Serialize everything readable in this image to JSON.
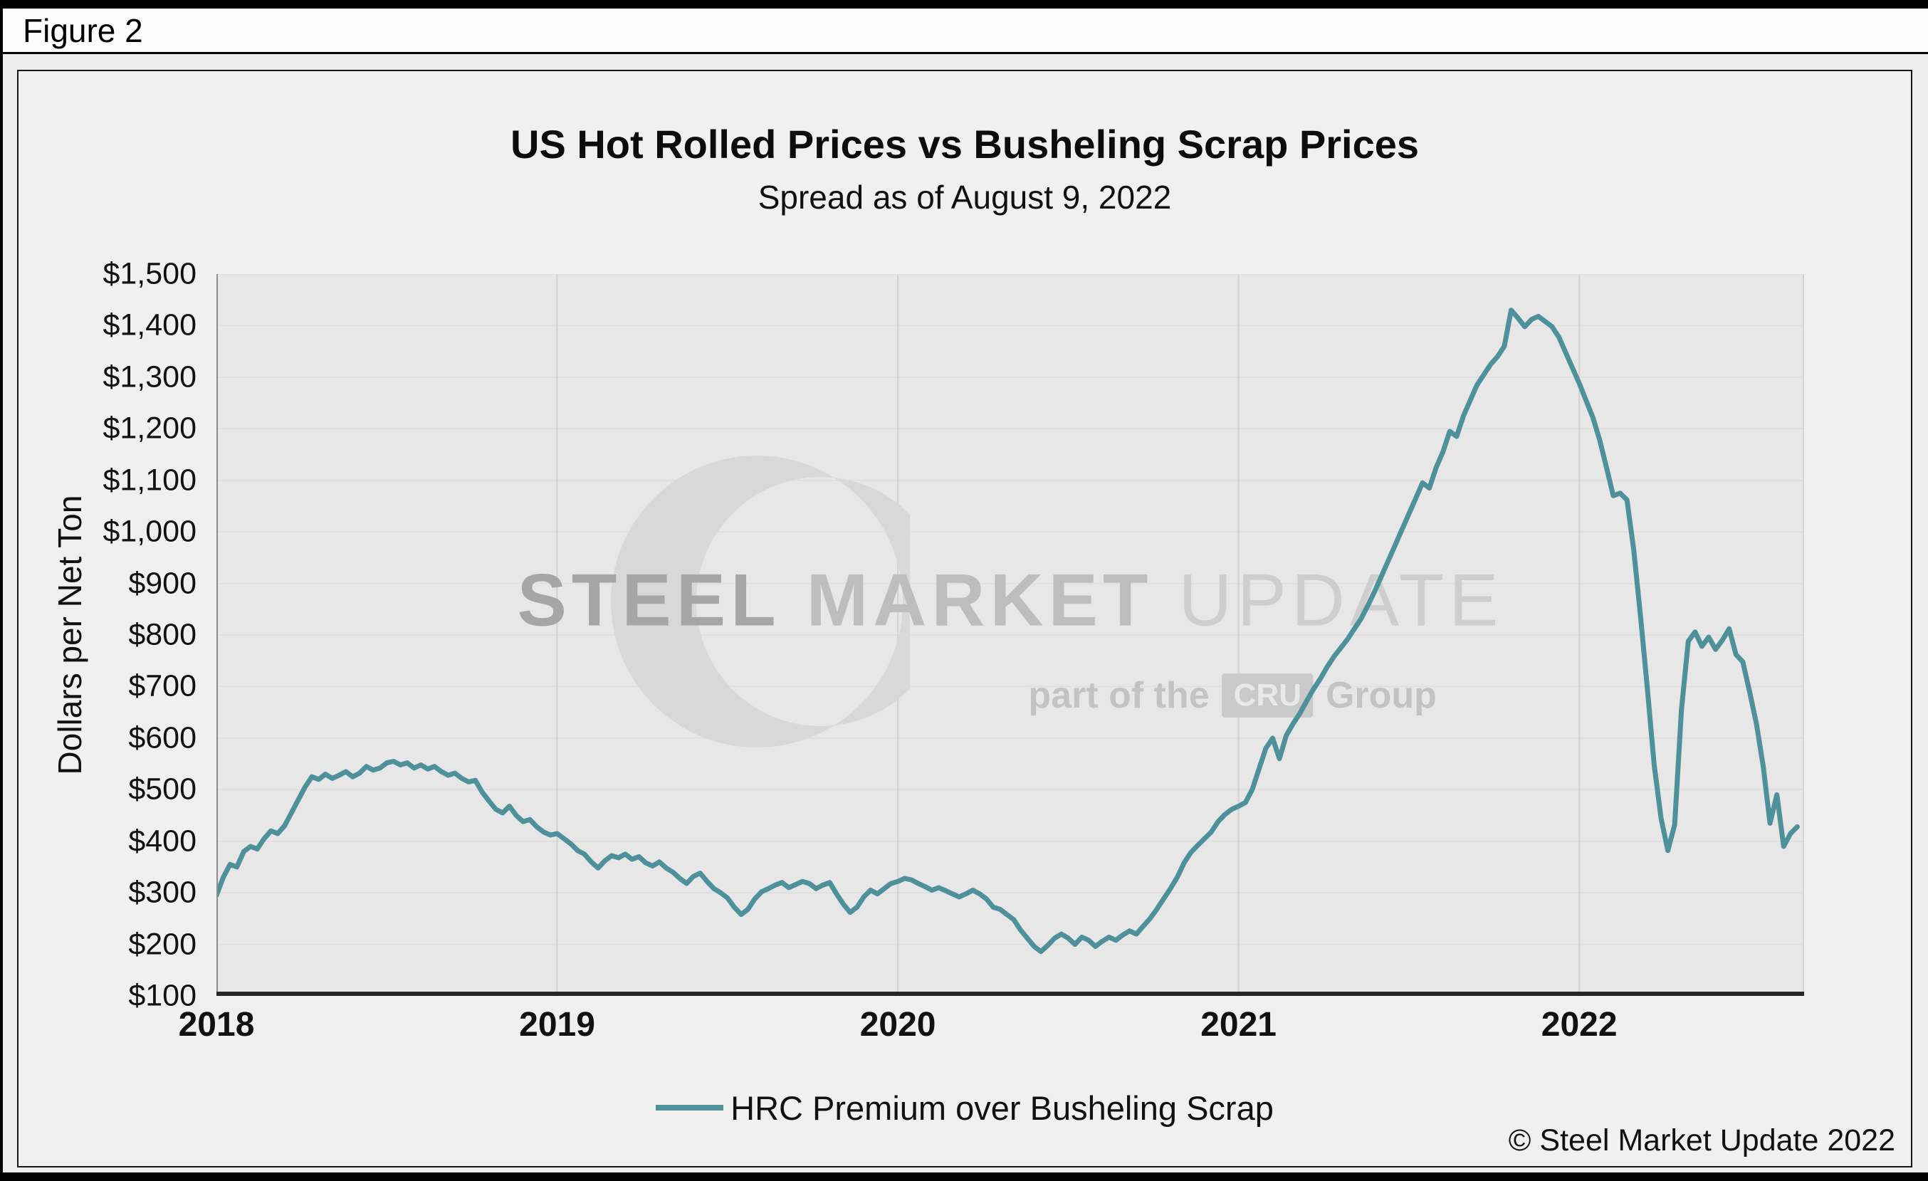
{
  "figure_label": "Figure 2",
  "copyright": "© Steel Market Update 2022",
  "watermark": {
    "word1": "STEEL",
    "word2": "MARKET",
    "word3": "UPDATE",
    "line2_prefix": "part of the",
    "line2_box": "CRU",
    "line2_suffix": "Group"
  },
  "colors": {
    "line": "#4e919b",
    "axis": "#262626",
    "plot_background": "#e7e7e7"
  },
  "chart_data": {
    "type": "line",
    "title": "US Hot Rolled Prices vs Busheling Scrap Prices",
    "subtitle": "Spread as of August 9, 2022",
    "xlabel": "",
    "ylabel": "Dollars per Net Ton",
    "ylim": [
      100,
      1500
    ],
    "xlim": [
      2018,
      2022.66
    ],
    "grid": "on",
    "legend_position": "bottom",
    "yticks": [
      {
        "value": 1500,
        "label": "$1,500"
      },
      {
        "value": 1400,
        "label": "$1,400"
      },
      {
        "value": 1300,
        "label": "$1,300"
      },
      {
        "value": 1200,
        "label": "$1,200"
      },
      {
        "value": 1100,
        "label": "$1,100"
      },
      {
        "value": 1000,
        "label": "$1,000"
      },
      {
        "value": 900,
        "label": "$900"
      },
      {
        "value": 800,
        "label": "$800"
      },
      {
        "value": 700,
        "label": "$700"
      },
      {
        "value": 600,
        "label": "$600"
      },
      {
        "value": 500,
        "label": "$500"
      },
      {
        "value": 400,
        "label": "$400"
      },
      {
        "value": 300,
        "label": "$300"
      },
      {
        "value": 200,
        "label": "$200"
      },
      {
        "value": 100,
        "label": "$100"
      }
    ],
    "xticks": [
      {
        "value": 2018,
        "label": "2018"
      },
      {
        "value": 2019,
        "label": "2019"
      },
      {
        "value": 2020,
        "label": "2020"
      },
      {
        "value": 2021,
        "label": "2021"
      },
      {
        "value": 2022,
        "label": "2022"
      }
    ],
    "series": [
      {
        "name": "HRC Premium over Busheling Scrap",
        "color": "#4e919b",
        "x_unit": "decimal_year",
        "x_start": 2018.0,
        "x_step": 0.02,
        "y": [
          295,
          330,
          355,
          350,
          380,
          390,
          385,
          405,
          420,
          415,
          430,
          455,
          480,
          505,
          525,
          520,
          530,
          522,
          528,
          535,
          525,
          532,
          545,
          538,
          542,
          552,
          555,
          548,
          552,
          542,
          548,
          540,
          545,
          535,
          528,
          532,
          522,
          515,
          518,
          495,
          478,
          462,
          455,
          468,
          450,
          438,
          442,
          428,
          418,
          412,
          415,
          405,
          395,
          382,
          375,
          360,
          348,
          362,
          372,
          368,
          375,
          365,
          370,
          358,
          352,
          360,
          348,
          340,
          328,
          318,
          332,
          338,
          322,
          308,
          300,
          290,
          272,
          258,
          268,
          288,
          302,
          308,
          315,
          320,
          310,
          316,
          322,
          318,
          308,
          315,
          320,
          298,
          278,
          262,
          272,
          292,
          305,
          298,
          308,
          318,
          322,
          328,
          325,
          318,
          312,
          305,
          310,
          304,
          298,
          292,
          298,
          305,
          298,
          288,
          272,
          268,
          258,
          248,
          228,
          212,
          196,
          186,
          198,
          212,
          220,
          212,
          200,
          214,
          208,
          196,
          206,
          214,
          208,
          218,
          226,
          220,
          235,
          250,
          268,
          288,
          308,
          330,
          358,
          378,
          392,
          405,
          418,
          438,
          452,
          462,
          468,
          475,
          500,
          540,
          580,
          600,
          560,
          605,
          628,
          648,
          672,
          695,
          715,
          738,
          758,
          775,
          792,
          812,
          832,
          858,
          885,
          915,
          945,
          975,
          1005,
          1035,
          1065,
          1095,
          1085,
          1125,
          1155,
          1195,
          1185,
          1225,
          1255,
          1285,
          1305,
          1325,
          1340,
          1360,
          1430,
          1415,
          1398,
          1412,
          1418,
          1408,
          1398,
          1378,
          1348,
          1318,
          1288,
          1255,
          1222,
          1178,
          1125,
          1070,
          1075,
          1062,
          965,
          835,
          695,
          548,
          445,
          382,
          432,
          655,
          788,
          806,
          778,
          796,
          772,
          790,
          812,
          762,
          748,
          690,
          628,
          545,
          435,
          490,
          390,
          415,
          428
        ]
      }
    ]
  }
}
